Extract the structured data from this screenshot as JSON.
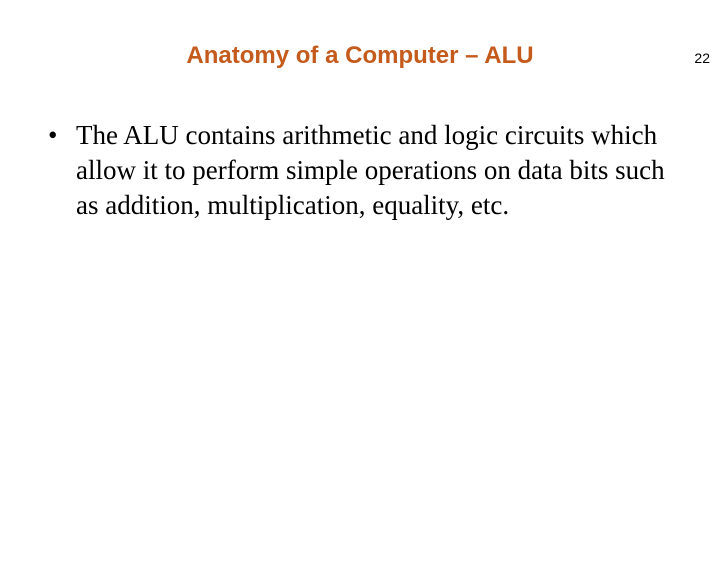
{
  "page_number": "22",
  "title": "Anatomy of a Computer – ALU",
  "title_color": "#c45a1c",
  "bullets": [
    "The ALU contains arithmetic and logic circuits which allow it to perform simple operations on data bits such as addition, multiplication, equality, etc."
  ],
  "styling": {
    "background_color": "#ffffff",
    "title_fontsize": 24,
    "title_fontweight": "bold",
    "title_fontfamily": "Arial",
    "body_fontsize": 27,
    "body_fontfamily": "Times New Roman",
    "body_color": "#000000",
    "page_number_fontsize": 14
  }
}
